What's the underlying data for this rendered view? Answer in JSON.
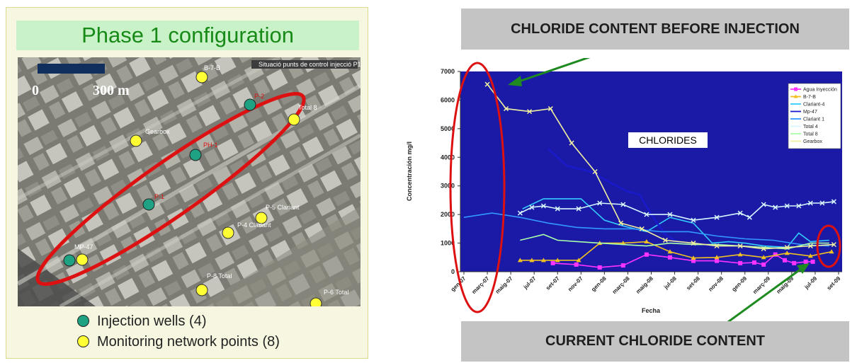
{
  "left_panel": {
    "title": "Phase 1 configuration",
    "scale_start": "0",
    "scale_end": "300 m",
    "header_text": "Situació punts de control injecció P1",
    "map_labels": [
      {
        "text": "B-7-B",
        "kind": "monitoring"
      },
      {
        "text": "P-2",
        "kind": "injection"
      },
      {
        "text": "Total 8",
        "kind": "monitoring"
      },
      {
        "text": "Gearbox",
        "kind": "monitoring"
      },
      {
        "text": "PH-1",
        "kind": "injection"
      },
      {
        "text": "P-1",
        "kind": "injection"
      },
      {
        "text": "P-5 Clariant",
        "kind": "monitoring"
      },
      {
        "text": "P-4 Clariant",
        "kind": "monitoring"
      },
      {
        "text": "MP-47",
        "kind": "injection"
      },
      {
        "text": "P-8 Total",
        "kind": "monitoring"
      },
      {
        "text": "P-6 Total",
        "kind": "monitoring"
      }
    ],
    "legend": [
      {
        "label": "Injection wells (4)",
        "color": "#1fa183"
      },
      {
        "label": "Monitoring network points (8)",
        "color": "#ffff33"
      }
    ],
    "colors": {
      "ellipse": "#dd1111",
      "title_bg": "#c9f2c9",
      "title_text": "#188a18"
    }
  },
  "right_panel": {
    "top_caption": "CHLORIDE CONTENT BEFORE INJECTION",
    "bottom_caption": "CURRENT CHLORIDE CONTENT"
  },
  "chart_data": {
    "type": "line",
    "annotation": "CHLORIDES",
    "xlabel": "Fecha",
    "ylabel": "Concentración mg/l",
    "ylim": [
      0,
      7000
    ],
    "yticks": [
      0,
      1000,
      2000,
      3000,
      4000,
      5000,
      6000,
      7000
    ],
    "grid": false,
    "legend_position": "top-right",
    "background": "#1a1aa6",
    "categories": [
      "gen-07",
      "mar-07",
      "mai-07",
      "jul-07",
      "set-07",
      "nov-07",
      "gen-08",
      "mar-08",
      "mai-08",
      "jul-08",
      "set-08",
      "nov-08",
      "gen-09",
      "mar-09",
      "mai-09",
      "jul-09",
      "set-09"
    ],
    "x_tick_labels": [
      "gen-07",
      "març-07",
      "maig-07",
      "jul-07",
      "set-07",
      "nov-07",
      "gen-08",
      "març-08",
      "maig-08",
      "jul-08",
      "set-08",
      "nov-08",
      "gen-09",
      "març-09",
      "maig-09",
      "jul-09",
      "set-09"
    ],
    "series": [
      {
        "name": "Agua Inyección",
        "color": "#ff33ff",
        "marker": "square",
        "points": [
          [
            3.8,
            300
          ],
          [
            4.8,
            250
          ],
          [
            5.8,
            150
          ],
          [
            6.8,
            220
          ],
          [
            7.8,
            600
          ],
          [
            8.8,
            500
          ],
          [
            9.8,
            380
          ],
          [
            10.8,
            380
          ],
          [
            11.8,
            300
          ],
          [
            12.4,
            320
          ],
          [
            12.8,
            250
          ],
          [
            13.3,
            600
          ],
          [
            13.7,
            400
          ],
          [
            14.1,
            300
          ],
          [
            14.6,
            350
          ],
          [
            14.9,
            350
          ]
        ]
      },
      {
        "name": "B-7-B",
        "color": "#f0c020",
        "marker": "triangle",
        "points": [
          [
            2.4,
            400
          ],
          [
            2.9,
            400
          ],
          [
            3.4,
            400
          ],
          [
            4.0,
            400
          ],
          [
            4.9,
            400
          ],
          [
            5.8,
            1000
          ],
          [
            6.8,
            1000
          ],
          [
            7.8,
            1050
          ],
          [
            8.8,
            700
          ],
          [
            9.8,
            480
          ],
          [
            10.8,
            500
          ],
          [
            11.8,
            600
          ],
          [
            12.8,
            500
          ],
          [
            13.8,
            650
          ],
          [
            14.8,
            550
          ],
          [
            15.7,
            700
          ]
        ]
      },
      {
        "name": "Clariant-4",
        "color": "#33ccff",
        "marker": "none",
        "points": [
          [
            2.5,
            2200
          ],
          [
            3.4,
            2550
          ],
          [
            4.4,
            2550
          ],
          [
            5.0,
            2550
          ],
          [
            6.0,
            1800
          ],
          [
            6.8,
            1600
          ],
          [
            7.8,
            1400
          ],
          [
            8.8,
            1900
          ],
          [
            9.8,
            1700
          ],
          [
            10.6,
            1000
          ],
          [
            11.3,
            1050
          ],
          [
            12.0,
            1000
          ],
          [
            12.8,
            900
          ],
          [
            13.8,
            850
          ],
          [
            14.3,
            1350
          ],
          [
            14.8,
            1050
          ],
          [
            15.6,
            1100
          ]
        ]
      },
      {
        "name": "Mp-47",
        "color": "#1a1acc",
        "marker": "none",
        "points": [
          [
            3.6,
            4300
          ],
          [
            4.4,
            3700
          ],
          [
            5.4,
            3500
          ],
          [
            6.4,
            3050
          ],
          [
            7.0,
            2800
          ],
          [
            7.5,
            2700
          ],
          [
            8.0,
            2000
          ],
          [
            8.6,
            1300
          ],
          [
            9.2,
            1000
          ]
        ]
      },
      {
        "name": "Clariant 1",
        "color": "#3399ff",
        "marker": "none",
        "points": [
          [
            0.0,
            1900
          ],
          [
            1.2,
            2050
          ],
          [
            2.4,
            1900
          ],
          [
            3.6,
            1700
          ],
          [
            4.8,
            1550
          ],
          [
            6.0,
            1500
          ],
          [
            7.2,
            1500
          ],
          [
            8.4,
            1400
          ],
          [
            9.6,
            1400
          ],
          [
            10.8,
            1250
          ],
          [
            12.0,
            1150
          ],
          [
            13.2,
            1100
          ],
          [
            14.4,
            950
          ],
          [
            15.6,
            900
          ]
        ]
      },
      {
        "name": "Total 4",
        "color": "#d8f8ff",
        "marker": "x",
        "points": [
          [
            2.4,
            2050
          ],
          [
            2.9,
            2250
          ],
          [
            3.4,
            2300
          ],
          [
            4.0,
            2200
          ],
          [
            4.9,
            2200
          ],
          [
            5.8,
            2400
          ],
          [
            6.8,
            2350
          ],
          [
            7.8,
            2000
          ],
          [
            8.8,
            2000
          ],
          [
            9.8,
            1800
          ],
          [
            10.8,
            1900
          ],
          [
            11.8,
            2050
          ],
          [
            12.2,
            1900
          ],
          [
            12.8,
            2350
          ],
          [
            13.3,
            2250
          ],
          [
            13.8,
            2300
          ],
          [
            14.3,
            2300
          ],
          [
            14.8,
            2400
          ],
          [
            15.3,
            2400
          ],
          [
            15.8,
            2450
          ]
        ]
      },
      {
        "name": "Total 8",
        "color": "#aaffaa",
        "marker": "none",
        "points": [
          [
            2.4,
            1100
          ],
          [
            2.9,
            1200
          ],
          [
            3.4,
            1300
          ],
          [
            4.0,
            1100
          ],
          [
            4.9,
            1050
          ],
          [
            5.8,
            1000
          ],
          [
            6.8,
            950
          ],
          [
            7.8,
            900
          ],
          [
            8.8,
            1000
          ],
          [
            9.8,
            950
          ],
          [
            10.8,
            950
          ],
          [
            11.8,
            900
          ],
          [
            12.8,
            850
          ],
          [
            13.8,
            800
          ],
          [
            14.8,
            1000
          ],
          [
            15.6,
            1000
          ]
        ]
      },
      {
        "name": "Gearbox",
        "color": "#f0f0a0",
        "marker": "x",
        "points": [
          [
            1.0,
            6550
          ],
          [
            1.8,
            5700
          ],
          [
            2.8,
            5600
          ],
          [
            3.7,
            5700
          ],
          [
            4.6,
            4500
          ],
          [
            5.6,
            3500
          ],
          [
            6.7,
            1700
          ],
          [
            7.6,
            1500
          ],
          [
            8.6,
            1100
          ],
          [
            9.8,
            1000
          ],
          [
            10.8,
            900
          ],
          [
            11.8,
            900
          ],
          [
            12.8,
            800
          ],
          [
            13.8,
            850
          ],
          [
            14.8,
            900
          ],
          [
            15.8,
            950
          ]
        ]
      }
    ]
  }
}
